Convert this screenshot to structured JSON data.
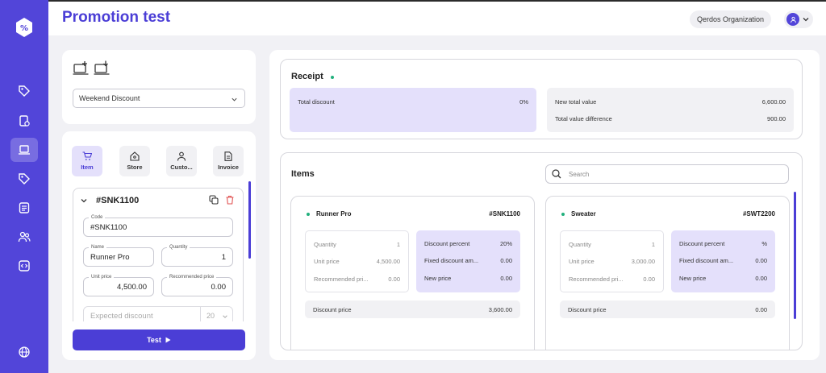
{
  "colors": {
    "primary": "#5245d9",
    "accent": "#4b3ed6",
    "lavender": "#e4e0fb",
    "status_dot": "#22b07d",
    "delete": "#e05252"
  },
  "sidebar": {
    "items": [
      {
        "name": "promotion-tag-icon"
      },
      {
        "name": "coupon-settings-icon"
      },
      {
        "name": "test-laptop-icon",
        "active": true
      },
      {
        "name": "tag-icon"
      },
      {
        "name": "list-icon"
      },
      {
        "name": "users-icon"
      },
      {
        "name": "code-icon"
      },
      {
        "name": "globe-icon"
      }
    ]
  },
  "header": {
    "title": "Promotion test",
    "organization": "Qerdos Organization"
  },
  "left_panel": {
    "promotion_select": {
      "value": "Weekend Discount"
    },
    "tabs": [
      {
        "label": "Item",
        "icon": "cart-icon",
        "active": true
      },
      {
        "label": "Store",
        "icon": "store-icon"
      },
      {
        "label": "Custo...",
        "icon": "user-icon"
      },
      {
        "label": "Invoice",
        "icon": "invoice-icon"
      }
    ],
    "item": {
      "title": "#SNK1100",
      "code_label": "Code",
      "code": "#SNK1100",
      "name_label": "Name",
      "name": "Runner Pro",
      "quantity_label": "Quantity",
      "quantity": "1",
      "unit_price_label": "Unit price",
      "unit_price": "4,500.00",
      "recommended_price_label": "Recommended price",
      "recommended_price": "0.00",
      "expected_discount_placeholder": "Expected discount",
      "expected_discount_value": "20"
    },
    "test_button": "Test"
  },
  "receipt": {
    "title": "Receipt",
    "total_discount_label": "Total discount",
    "total_discount": "0%",
    "new_total_label": "New total value",
    "new_total": "6,600.00",
    "difference_label": "Total value difference",
    "difference": "900.00"
  },
  "items_section": {
    "title": "Items",
    "search_placeholder": "Search",
    "cards": [
      {
        "name": "Runner Pro",
        "code": "#SNK1100",
        "quantity_label": "Quantity",
        "quantity": "1",
        "unit_price_label": "Unit price",
        "unit_price": "4,500.00",
        "recommended_label": "Recommended pri...",
        "recommended": "0.00",
        "discount_percent_label": "Discount percent",
        "discount_percent": "20%",
        "fixed_discount_label": "Fixed discount am...",
        "fixed_discount": "0.00",
        "new_price_label": "New price",
        "new_price": "0.00",
        "discount_price_label": "Discount price",
        "discount_price": "3,600.00"
      },
      {
        "name": "Sweater",
        "code": "#SWT2200",
        "quantity_label": "Quantity",
        "quantity": "1",
        "unit_price_label": "Unit price",
        "unit_price": "3,000.00",
        "recommended_label": "Recommended pri...",
        "recommended": "0.00",
        "discount_percent_label": "Discount percent",
        "discount_percent": "%",
        "fixed_discount_label": "Fixed discount am...",
        "fixed_discount": "0.00",
        "new_price_label": "New price",
        "new_price": "0.00",
        "discount_price_label": "Discount price",
        "discount_price": "0.00"
      }
    ]
  }
}
